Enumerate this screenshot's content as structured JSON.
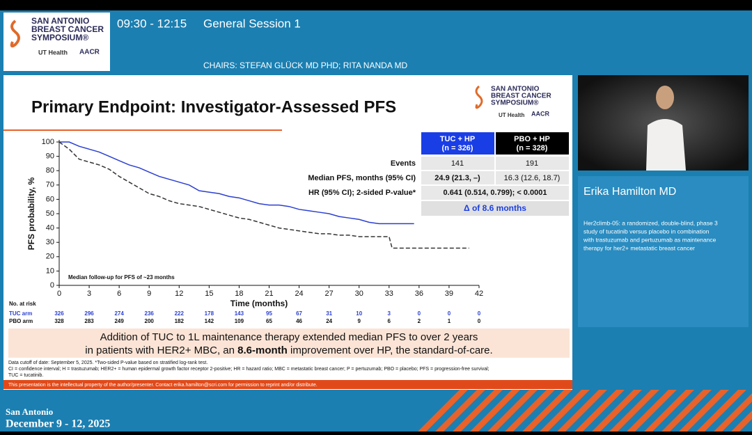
{
  "header": {
    "session_time": "09:30 - 12:15",
    "session_name": "General Session 1",
    "chairs": "CHAIRS: STEFAN GLÜCK MD PHD; RITA NANDA MD",
    "logo": {
      "line1": "SAN ANTONIO",
      "line2": "BREAST CANCER",
      "line3": "SYMPOSIUM®",
      "partner1": "UT Health",
      "partner2": "AACR"
    }
  },
  "slide": {
    "title": "Primary Endpoint: Investigator-Assessed PFS",
    "chart": {
      "type": "line",
      "y_label": "PFS probability, %",
      "x_label": "Time (months)",
      "annotation": "Median follow-up for PFS of ~23 months",
      "xlim": [
        0,
        42
      ],
      "xticks": [
        0,
        3,
        6,
        9,
        12,
        15,
        18,
        21,
        24,
        27,
        30,
        33,
        36,
        39,
        42
      ],
      "ylim": [
        0,
        100
      ],
      "yticks": [
        0,
        10,
        20,
        30,
        40,
        50,
        60,
        70,
        80,
        90,
        100
      ],
      "series": [
        {
          "color": "#2b3fd0",
          "dashed": false,
          "x": [
            0,
            1,
            2,
            3,
            4,
            5,
            6,
            7,
            8,
            9,
            10,
            11,
            12,
            13,
            14,
            15,
            16,
            17,
            18,
            19,
            20,
            21,
            22,
            23,
            24,
            25,
            26,
            27,
            28,
            29,
            30,
            31,
            32,
            33,
            34,
            35.5
          ],
          "values": [
            100,
            100,
            97,
            95,
            93,
            90,
            87,
            84,
            82,
            79,
            76,
            74,
            72,
            70,
            66,
            65,
            64,
            62,
            61,
            59,
            57,
            56,
            56,
            55,
            53,
            52,
            51,
            50,
            48,
            47,
            46,
            44,
            43,
            43,
            43,
            43
          ]
        },
        {
          "color": "#333333",
          "dashed": true,
          "x": [
            0,
            1,
            2,
            3,
            4,
            5,
            6,
            7,
            8,
            9,
            10,
            11,
            12,
            13,
            14,
            15,
            16,
            17,
            18,
            19,
            20,
            21,
            22,
            23,
            24,
            25,
            26,
            27,
            28,
            29,
            30,
            31,
            32,
            33,
            33.3,
            41
          ],
          "values": [
            100,
            95,
            88,
            86,
            84,
            81,
            76,
            72,
            68,
            64,
            62,
            59,
            57,
            56,
            55,
            53,
            51,
            49,
            47,
            46,
            44,
            42,
            40,
            39,
            38,
            37,
            36,
            36,
            35,
            35,
            34,
            34,
            34,
            34,
            26,
            26
          ]
        }
      ]
    },
    "risk_table": {
      "title": "No. at risk",
      "rows": [
        {
          "label": "TUC arm",
          "color": "#2b3fd0",
          "values": [
            326,
            296,
            274,
            236,
            222,
            178,
            143,
            95,
            67,
            31,
            10,
            3,
            0,
            0,
            0
          ]
        },
        {
          "label": "PBO arm",
          "color": "#111111",
          "values": [
            328,
            283,
            249,
            200,
            182,
            142,
            109,
            65,
            46,
            24,
            9,
            6,
            2,
            1,
            0
          ]
        }
      ]
    },
    "stats_table": {
      "col1": [
        "TUC + HP",
        "(n = 326)"
      ],
      "col2": [
        "PBO + HP",
        "(n = 328)"
      ],
      "events": {
        "label": "Events",
        "tuc": "141",
        "pbo": "191"
      },
      "median": {
        "label": "Median PFS, months (95% CI)",
        "tuc": "24.9 (21.3, –)",
        "pbo": "16.3 (12.6, 18.7)"
      },
      "hr": {
        "label": "HR (95% CI); 2-sided P-value*",
        "value": "0.641 (0.514, 0.799); < 0.0001"
      },
      "delta": "Δ of 8.6 months"
    },
    "conclusion": {
      "line1": "Addition of TUC to 1L maintenance therapy extended median PFS to over 2 years",
      "line2_a": "in patients with HER2+ MBC, an ",
      "line2_b": "8.6-month",
      "line2_c": " improvement over HP, the standard-of-care."
    },
    "footnotes": [
      "Data cutoff of date: September 5, 2025. *Two-sided P-value based on stratified log-rank test.",
      "CI = confidence interval; H = trastuzumab; HER2+ = human epidermal growth factor receptor 2-positive; HR = hazard ratio; MBC = metastatic breast cancer; P = pertuzumab; PBO = placebo; PFS = progression-free survival;",
      "TUC = tucatinib."
    ],
    "disclaimer": "This presentation is the intellectual property of the author/presenter. Contact erika.hamilton@scri.com for permission to reprint and/or distribute."
  },
  "speaker": {
    "name": "Erika Hamilton MD",
    "description": [
      "Her2climb-05: a randomized, double-blind, phase 3",
      "study of tucatinib versus placebo in combination",
      "with trastuzumab and pertuzumab as maintenance",
      "therapy for her2+ metastatic breast cancer"
    ]
  },
  "footer": {
    "city": "San Antonio",
    "dates": "December 9 - 12, 2025"
  }
}
